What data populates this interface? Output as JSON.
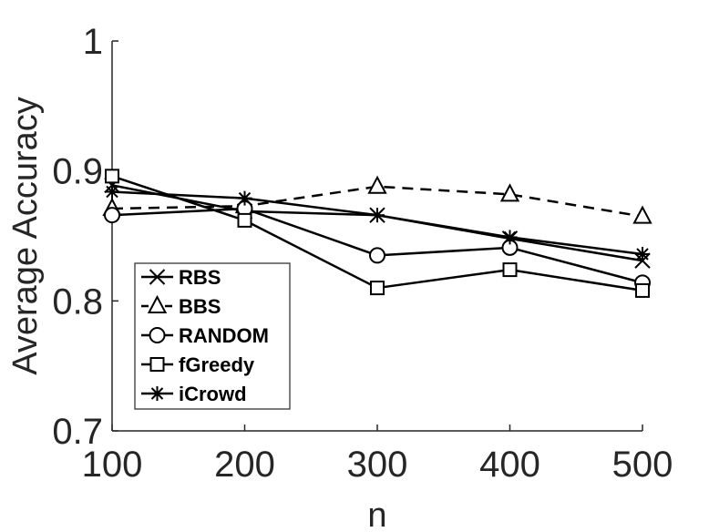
{
  "chart_data": {
    "type": "line",
    "title": "",
    "xlabel": "n",
    "ylabel": "Average Accuracy",
    "x": [
      100,
      200,
      300,
      400,
      500
    ],
    "x_tick_labels": [
      "100",
      "200",
      "300",
      "400",
      "500"
    ],
    "y_tick_labels": [
      "0.7",
      "0.8",
      "0.9",
      "1"
    ],
    "y_ticks": [
      0.7,
      0.8,
      0.9,
      1.0
    ],
    "xlim": [
      100,
      500
    ],
    "ylim": [
      0.7,
      1.0
    ],
    "grid": false,
    "legend_position": "bottom-left",
    "series": [
      {
        "name": "RBS",
        "marker": "x",
        "line_style": "solid",
        "values": [
          0.889,
          0.869,
          0.866,
          0.848,
          0.831
        ]
      },
      {
        "name": "BBS",
        "marker": "triangle",
        "line_style": "dashed",
        "values": [
          0.871,
          0.873,
          0.888,
          0.882,
          0.865
        ]
      },
      {
        "name": "RANDOM",
        "marker": "circle",
        "line_style": "solid",
        "values": [
          0.866,
          0.871,
          0.835,
          0.841,
          0.814
        ]
      },
      {
        "name": "fGreedy",
        "marker": "square",
        "line_style": "solid",
        "values": [
          0.896,
          0.862,
          0.81,
          0.824,
          0.808
        ]
      },
      {
        "name": "iCrowd",
        "marker": "asterisk",
        "line_style": "solid",
        "values": [
          0.884,
          0.879,
          0.866,
          0.849,
          0.836
        ]
      }
    ]
  }
}
